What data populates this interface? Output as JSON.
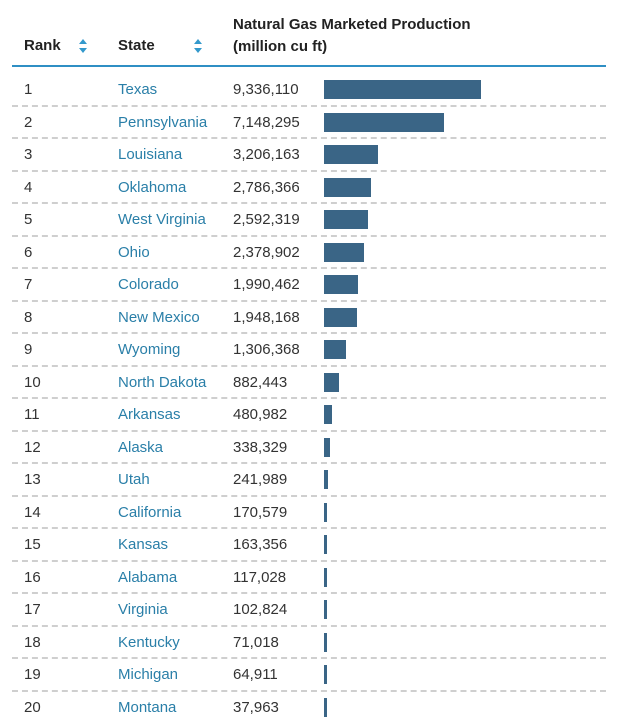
{
  "header": {
    "rank_label": "Rank",
    "state_label": "State",
    "value_label_line1": "Natural Gas Marketed Production",
    "value_label_line2": "(million cu ft)"
  },
  "colors": {
    "bar": "#3a6586",
    "link": "#2a7fa8",
    "accent": "#2f8fc4",
    "sort_icon": "#3399cc"
  },
  "icons": {
    "rank_sort": "sort-up-down-icon",
    "state_sort": "sort-up-down-icon"
  },
  "chart_data": {
    "type": "table",
    "columns": [
      "Rank",
      "State",
      "Natural Gas Marketed Production (million cu ft)"
    ],
    "rows": [
      {
        "rank": "1",
        "state": "Texas",
        "value_text": "9,336,110",
        "value": 9336110
      },
      {
        "rank": "2",
        "state": "Pennsylvania",
        "value_text": "7,148,295",
        "value": 7148295
      },
      {
        "rank": "3",
        "state": "Louisiana",
        "value_text": "3,206,163",
        "value": 3206163
      },
      {
        "rank": "4",
        "state": "Oklahoma",
        "value_text": "2,786,366",
        "value": 2786366
      },
      {
        "rank": "5",
        "state": "West Virginia",
        "value_text": "2,592,319",
        "value": 2592319
      },
      {
        "rank": "6",
        "state": "Ohio",
        "value_text": "2,378,902",
        "value": 2378902
      },
      {
        "rank": "7",
        "state": "Colorado",
        "value_text": "1,990,462",
        "value": 1990462
      },
      {
        "rank": "8",
        "state": "New Mexico",
        "value_text": "1,948,168",
        "value": 1948168
      },
      {
        "rank": "9",
        "state": "Wyoming",
        "value_text": "1,306,368",
        "value": 1306368
      },
      {
        "rank": "10",
        "state": "North Dakota",
        "value_text": "882,443",
        "value": 882443
      },
      {
        "rank": "11",
        "state": "Arkansas",
        "value_text": "480,982",
        "value": 480982
      },
      {
        "rank": "12",
        "state": "Alaska",
        "value_text": "338,329",
        "value": 338329
      },
      {
        "rank": "13",
        "state": "Utah",
        "value_text": "241,989",
        "value": 241989
      },
      {
        "rank": "14",
        "state": "California",
        "value_text": "170,579",
        "value": 170579
      },
      {
        "rank": "15",
        "state": "Kansas",
        "value_text": "163,356",
        "value": 163356
      },
      {
        "rank": "16",
        "state": "Alabama",
        "value_text": "117,028",
        "value": 117028
      },
      {
        "rank": "17",
        "state": "Virginia",
        "value_text": "102,824",
        "value": 102824
      },
      {
        "rank": "18",
        "state": "Kentucky",
        "value_text": "71,018",
        "value": 71018
      },
      {
        "rank": "19",
        "state": "Michigan",
        "value_text": "64,911",
        "value": 64911
      },
      {
        "rank": "20",
        "state": "Montana",
        "value_text": "37,963",
        "value": 37963
      }
    ]
  }
}
